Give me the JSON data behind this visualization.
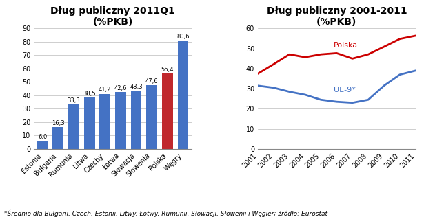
{
  "bar_categories": [
    "Estonia",
    "Bułgaria",
    "Rumunia",
    "Litwa",
    "Czechy",
    "Łotwa",
    "Słowacja",
    "Słowenia",
    "Polska",
    "Węgry"
  ],
  "bar_values": [
    6.0,
    16.3,
    33.3,
    38.5,
    41.2,
    42.6,
    43.3,
    47.6,
    56.4,
    80.6
  ],
  "bar_colors": [
    "#4472C4",
    "#4472C4",
    "#4472C4",
    "#4472C4",
    "#4472C4",
    "#4472C4",
    "#4472C4",
    "#4472C4",
    "#C0282D",
    "#4472C4"
  ],
  "bar_title": "Dług publiczny 2011Q1\n(%PKB)",
  "bar_ylim": [
    0,
    90
  ],
  "bar_yticks": [
    0,
    10,
    20,
    30,
    40,
    50,
    60,
    70,
    80,
    90
  ],
  "line_years": [
    2001,
    2002,
    2003,
    2004,
    2005,
    2006,
    2007,
    2008,
    2009,
    2010,
    2011
  ],
  "polska_values": [
    37.5,
    42.2,
    47.1,
    45.7,
    47.1,
    47.7,
    45.0,
    47.1,
    50.9,
    54.8,
    56.4
  ],
  "ue9_values": [
    31.5,
    30.5,
    28.5,
    27.0,
    24.5,
    23.5,
    23.0,
    24.5,
    31.5,
    37.0,
    39.0
  ],
  "line_title": "Dług publiczny 2001-2011\n(%PKB)",
  "line_ylim": [
    0,
    60
  ],
  "line_yticks": [
    0,
    10,
    20,
    30,
    40,
    50,
    60
  ],
  "polska_color": "#CC0000",
  "ue9_color": "#4472C4",
  "polska_label": "Polska",
  "ue9_label": "UE-9*",
  "footnote": "*Średnio dla Bułgarii, Czech, Estonii, Litwy, Łotwy, Rumunii, Słowacji, Słowenii i Węgier; źródło: Eurostat",
  "bg_color": "#FFFFFF",
  "title_fontsize": 10,
  "tick_fontsize": 7,
  "footnote_fontsize": 6.5,
  "bar_value_fontsize": 6,
  "line_label_fontsize": 8
}
